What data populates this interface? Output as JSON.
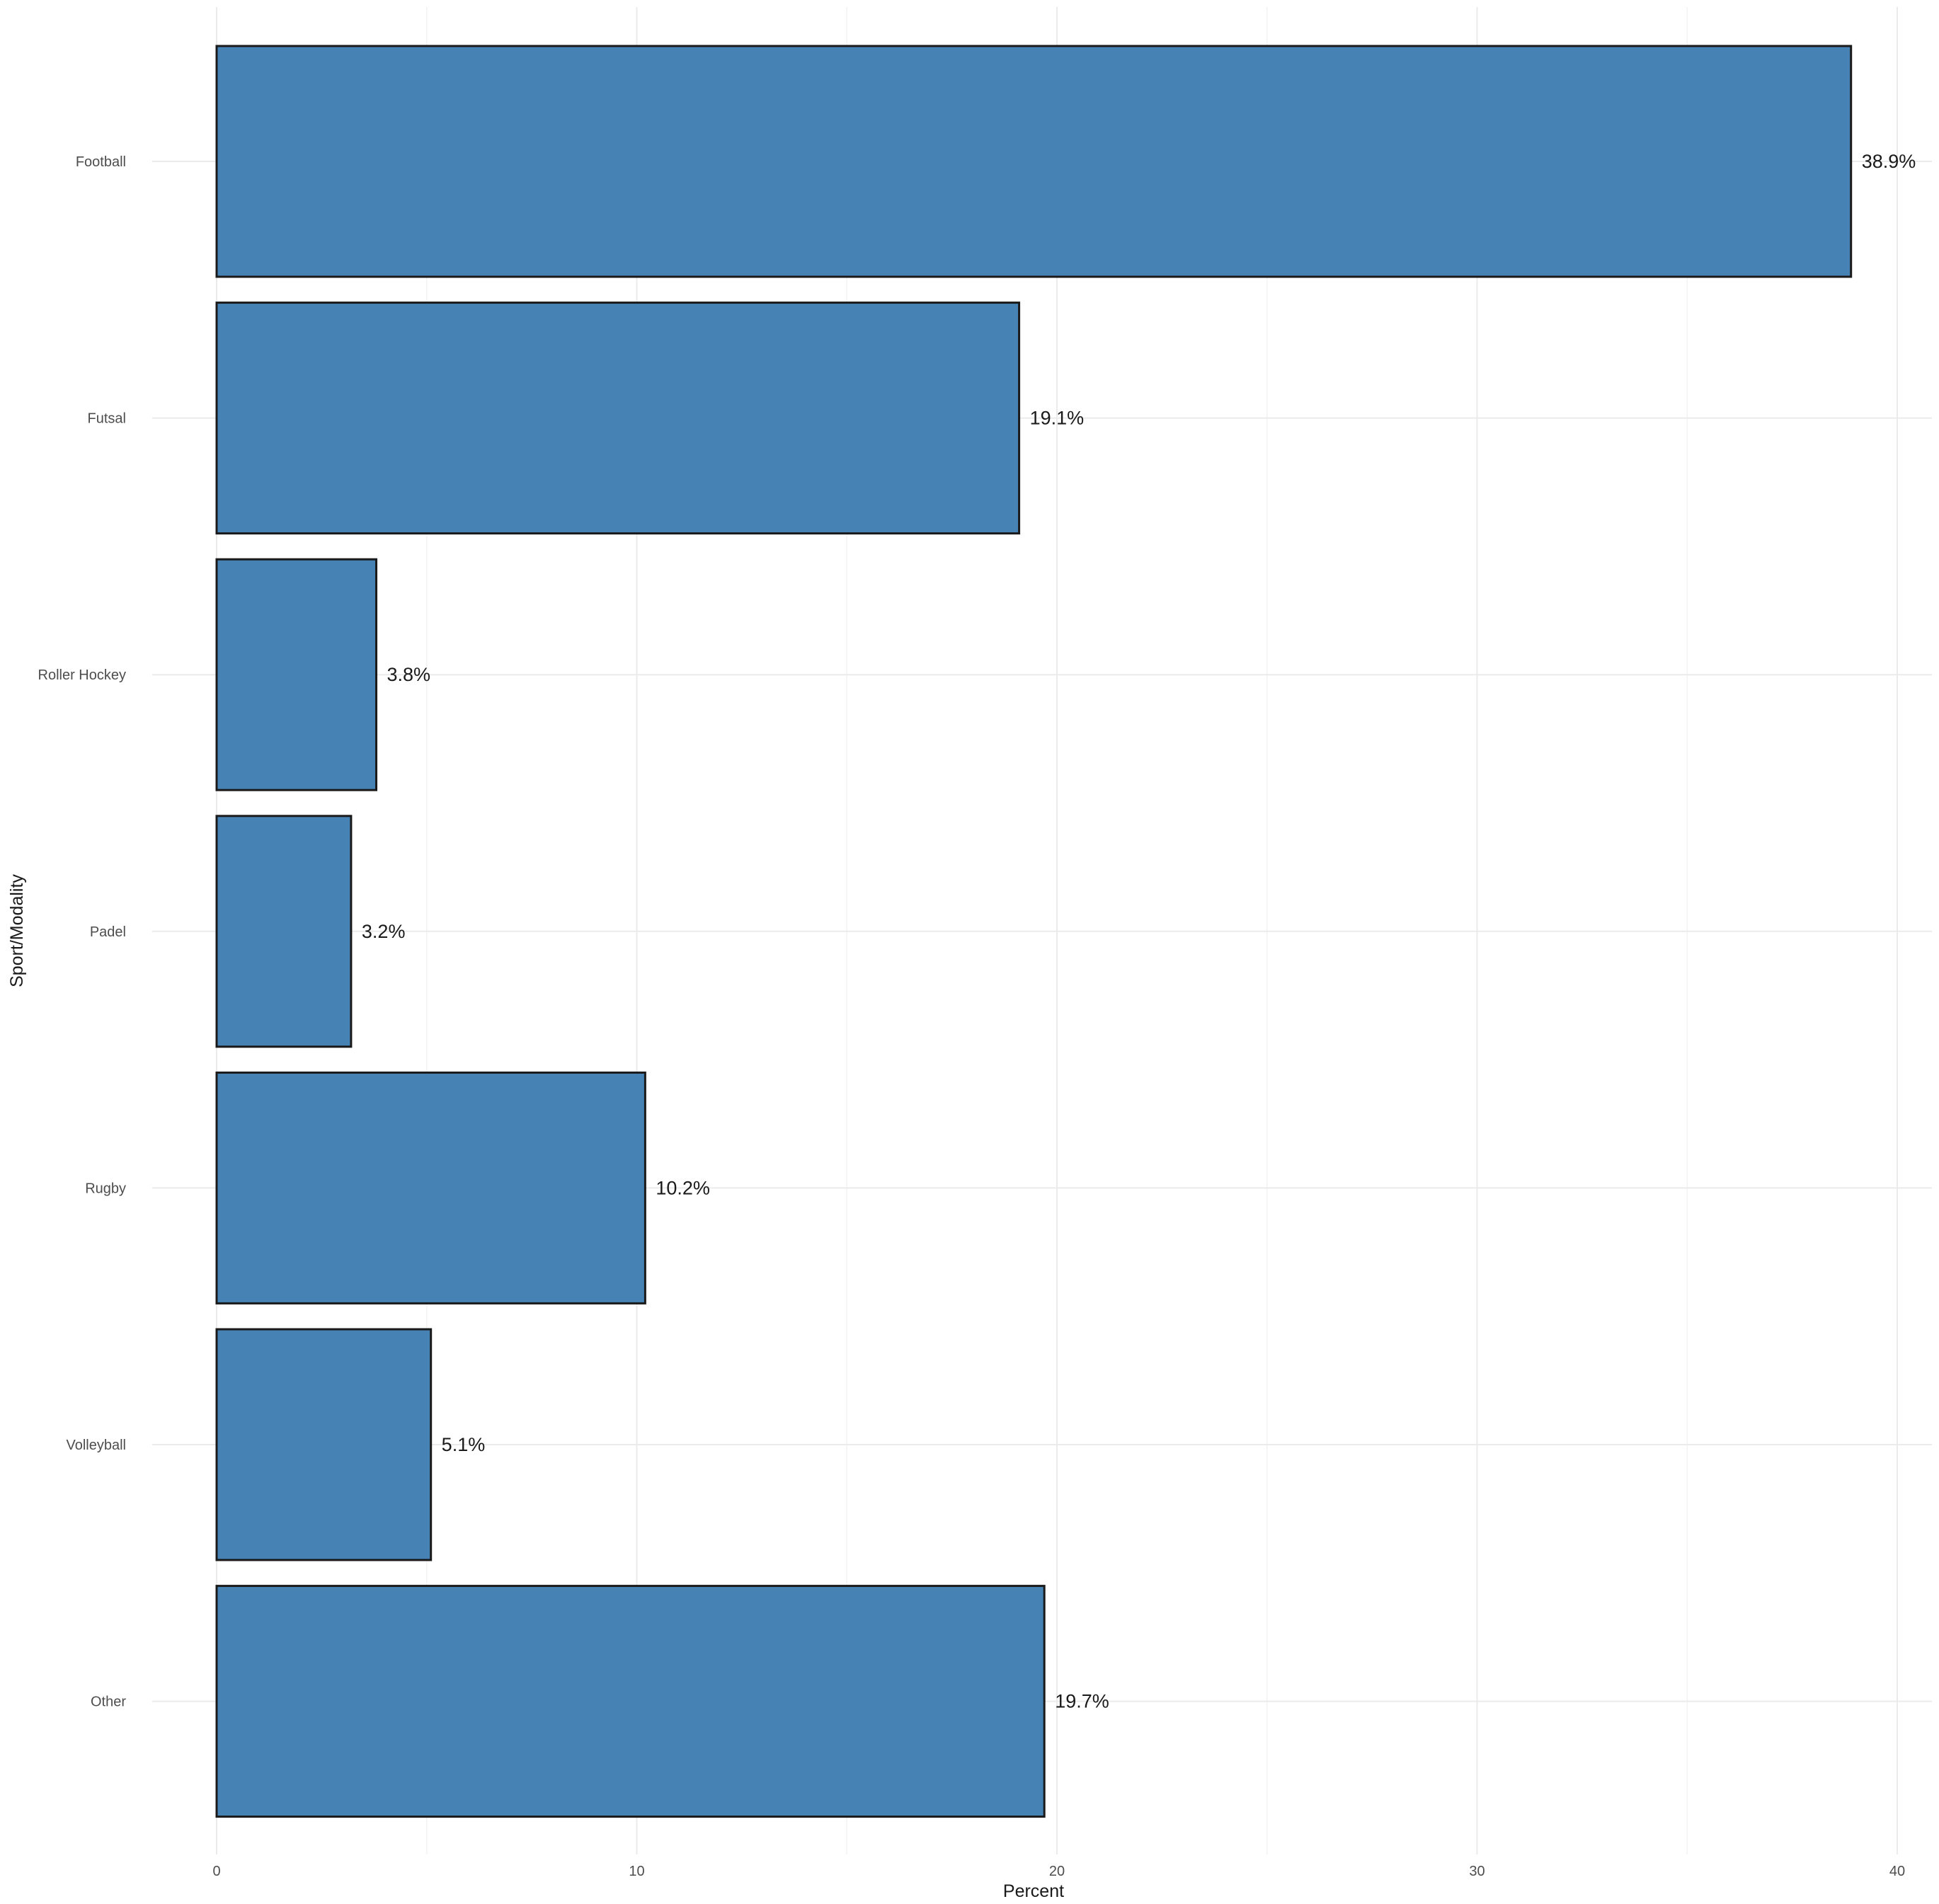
{
  "chart_data": {
    "type": "bar",
    "orientation": "horizontal",
    "categories": [
      "Football",
      "Futsal",
      "Roller Hockey",
      "Padel",
      "Rugby",
      "Volleyball",
      "Other"
    ],
    "values": [
      38.9,
      19.1,
      3.8,
      3.2,
      10.2,
      5.1,
      19.7
    ],
    "value_labels": [
      "38.9%",
      "19.1%",
      "3.8%",
      "3.2%",
      "10.2%",
      "5.1%",
      "19.7%"
    ],
    "xlabel": "Percent",
    "ylabel": "Sport/Modality",
    "xlim": [
      0,
      40
    ],
    "x_ticks": [
      0,
      10,
      20,
      30,
      40
    ],
    "x_tick_labels": [
      "0",
      "10",
      "20",
      "30",
      "40"
    ],
    "grid": true,
    "bar_color": "#4682b4",
    "bar_outline_color": "#1a1a1a"
  }
}
